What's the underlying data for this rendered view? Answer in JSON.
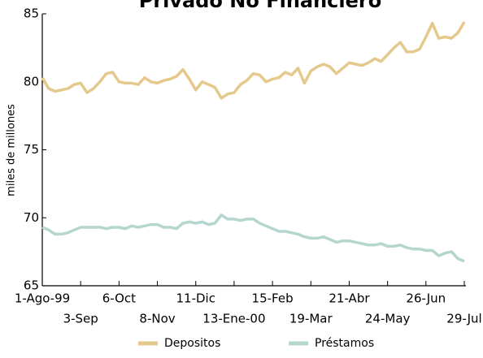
{
  "chart_data": {
    "type": "line",
    "title": "Privado No Financiero",
    "y_label": "miles de millones",
    "categories": [
      "1-Ago-99",
      null,
      null,
      null,
      null,
      null,
      "3-Sep",
      null,
      null,
      null,
      null,
      null,
      "6-Oct",
      null,
      null,
      null,
      null,
      null,
      "8-Nov",
      null,
      null,
      null,
      null,
      null,
      "11-Dic",
      null,
      null,
      null,
      null,
      null,
      "13-Ene-00",
      null,
      null,
      null,
      null,
      null,
      "15-Feb",
      null,
      null,
      null,
      null,
      null,
      "19-Mar",
      null,
      null,
      null,
      null,
      null,
      "21-Abr",
      null,
      null,
      null,
      null,
      null,
      "24-May",
      null,
      null,
      null,
      null,
      null,
      "26-Jun",
      null,
      null,
      null,
      null,
      null,
      "29-Jul"
    ],
    "series": [
      {
        "name": "Depositos",
        "color": "#e5c88c",
        "values": [
          80.3,
          79.5,
          79.3,
          79.4,
          79.5,
          79.8,
          79.9,
          79.2,
          79.5,
          80.0,
          80.6,
          80.7,
          80.0,
          79.9,
          79.9,
          79.8,
          80.3,
          80.0,
          79.9,
          80.1,
          80.2,
          80.4,
          80.9,
          80.2,
          79.4,
          80.0,
          79.8,
          79.6,
          78.8,
          79.1,
          79.2,
          79.8,
          80.1,
          80.6,
          80.5,
          80.0,
          80.2,
          80.3,
          80.7,
          80.5,
          81.0,
          79.9,
          80.8,
          81.1,
          81.3,
          81.1,
          80.6,
          81.0,
          81.4,
          81.3,
          81.2,
          81.4,
          81.7,
          81.5,
          82.0,
          82.5,
          82.9,
          82.2,
          82.2,
          82.4,
          83.3,
          84.3,
          83.2,
          83.3,
          83.2,
          83.6,
          84.4
        ]
      },
      {
        "name": "Préstamos",
        "color": "#b5d6cf",
        "values": [
          69.3,
          69.1,
          68.8,
          68.8,
          68.9,
          69.1,
          69.3,
          69.3,
          69.3,
          69.3,
          69.2,
          69.3,
          69.3,
          69.2,
          69.4,
          69.3,
          69.4,
          69.5,
          69.5,
          69.3,
          69.3,
          69.2,
          69.6,
          69.7,
          69.6,
          69.7,
          69.5,
          69.6,
          70.2,
          69.9,
          69.9,
          69.8,
          69.9,
          69.9,
          69.6,
          69.4,
          69.2,
          69.0,
          69.0,
          68.9,
          68.8,
          68.6,
          68.5,
          68.5,
          68.6,
          68.4,
          68.2,
          68.3,
          68.3,
          68.2,
          68.1,
          68.0,
          68.0,
          68.1,
          67.9,
          67.9,
          68.0,
          67.8,
          67.7,
          67.7,
          67.6,
          67.6,
          67.2,
          67.4,
          67.5,
          67.0,
          66.8
        ]
      }
    ],
    "ylim": [
      65,
      85
    ],
    "yticks": [
      65,
      70,
      75,
      80,
      85
    ],
    "grid": false,
    "legend": "bottom"
  }
}
